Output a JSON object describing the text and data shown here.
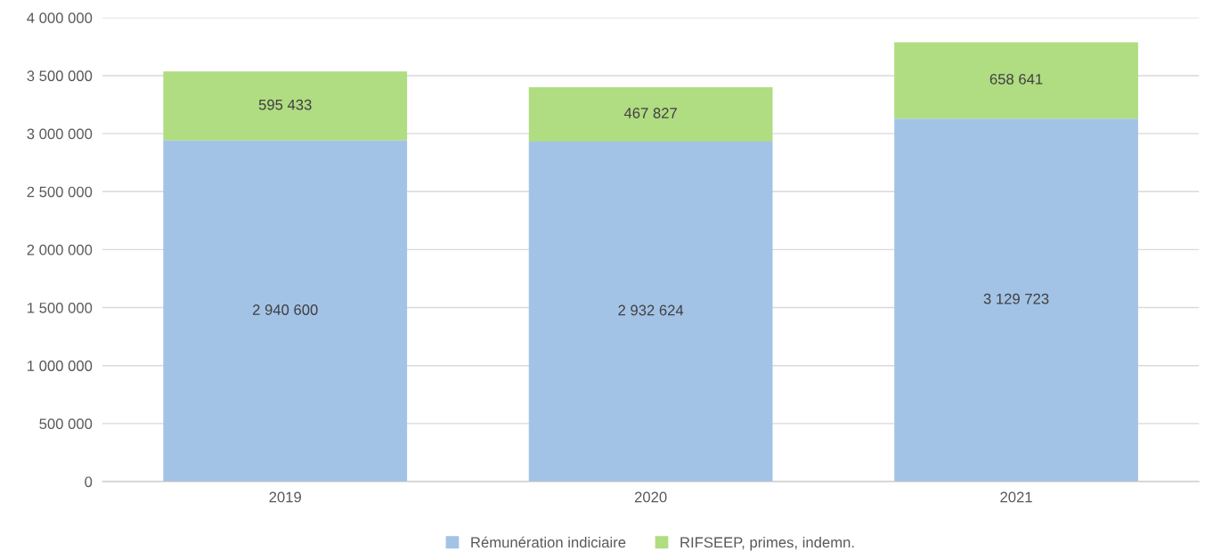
{
  "chart_data": {
    "type": "bar",
    "stacked": true,
    "categories": [
      "2019",
      "2020",
      "2021"
    ],
    "series": [
      {
        "name": "Rémunération indiciaire",
        "color": "#a3c3e6",
        "values": [
          2940600,
          2932624,
          3129723
        ],
        "value_labels": [
          "2 940 600",
          "2 932 624",
          "3 129 723"
        ]
      },
      {
        "name": "RIFSEEP, primes, indemn.",
        "color": "#b0dc82",
        "values": [
          595433,
          467827,
          658641
        ],
        "value_labels": [
          "595 433",
          "467 827",
          "658 641"
        ]
      }
    ],
    "ylim": [
      0,
      4000000
    ],
    "yticks": [
      0,
      {
        "value": 500000,
        "label": "500 000"
      },
      {
        "value": 1000000,
        "label": "1 000 000"
      },
      {
        "value": 1500000,
        "label": "1 500 000"
      },
      {
        "value": 2000000,
        "label": "2 000 000"
      },
      {
        "value": 2500000,
        "label": "2 500 000"
      },
      {
        "value": 3000000,
        "label": "3 000 000"
      },
      {
        "value": 3500000,
        "label": "3 500 000"
      },
      {
        "value": 4000000,
        "label": "4 000 000"
      }
    ],
    "grid": "y",
    "legend": "bottom"
  }
}
